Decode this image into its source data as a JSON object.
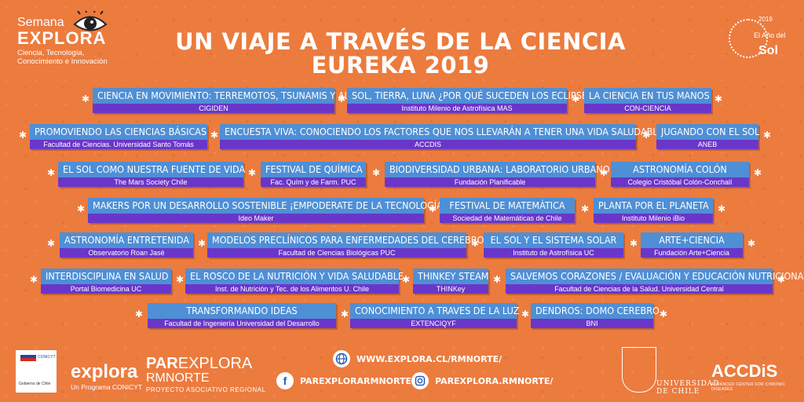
{
  "header": {
    "semana": "Semana",
    "explora": "EXPLORA",
    "tagline": [
      "Ciencia, Tecnología,",
      "Conocimiento e Innovación"
    ],
    "title_line1": "UN VIAJE A TRAVÉS DE LA CIENCIA",
    "title_line2": "EUREKA 2019",
    "sun_year": "2019",
    "sun_small": "El Año del",
    "sun_word": "Sol"
  },
  "activities": [
    {
      "title": "Ciencia en movimiento: Terremotos, tsunamis y aluviones",
      "org": "CIGIDEN"
    },
    {
      "title": "Sol, Tierra, Luna ¿Por qué suceden los eclipses?",
      "org": "Instituto Milenio de Astrofísica MAS"
    },
    {
      "title": "La ciencia en tus manos",
      "org": "CON-CIENCIA"
    },
    {
      "title": "Promoviendo las ciencias básicas",
      "org": "Facultad de Ciencias. Universidad Santo Tomás"
    },
    {
      "title": "Encuesta viva: Conociendo los factores que nos llevarán a tener una vida saludable",
      "org": "ACCDIS"
    },
    {
      "title": "Jugando con el sol",
      "org": "ANEB"
    },
    {
      "title": "El sol como nuestra fuente de vida",
      "org": "The Mars Society Chile"
    },
    {
      "title": "Festival de química",
      "org": "Fac. Quím y de Farm. PUC"
    },
    {
      "title": "Biodiversidad urbana: Laboratorio urbano",
      "org": "Fundación Planificable"
    },
    {
      "title": "Astronomía Colón",
      "org": "Colegio Cristóbal Colón-Conchalí"
    },
    {
      "title": "Makers por un desarrollo sostenible ¡Empoderate de la tecnología!",
      "org": "Ideo Maker"
    },
    {
      "title": "Festival de matemática",
      "org": "Sociedad de Matemáticas de Chile"
    },
    {
      "title": "Planta por el planeta",
      "org": "Instituto Milenio iBio"
    },
    {
      "title": "Astronomía entretenida",
      "org": "Observatorio Roan Jasé"
    },
    {
      "title": "Modelos preclínicos para enfermedades del cerebro",
      "org": "Facultad de Ciencias Biológicas PUC"
    },
    {
      "title": "El sol y el sistema solar",
      "org": "Instituto de Astrofísica UC"
    },
    {
      "title": "Arte+Ciencia",
      "org": "Fundación Arte+Ciencia"
    },
    {
      "title": "Interdisciplina en salud",
      "org": "Portal Biomedicina UC"
    },
    {
      "title": "El rosco de la nutrición y vida saludable",
      "org": "Inst. de Nutrición y Tec. de los Alimentos U. Chile"
    },
    {
      "title": "Thinkey steam",
      "org": "THINKey"
    },
    {
      "title": "Salvemos corazones / Evaluación y educación nutricional",
      "org": "Facultad de Ciencias de la Salud. Universidad Central"
    },
    {
      "title": "Transformando ideas",
      "org": "Facultad de Ingeniería Universidad del Desarrollo"
    },
    {
      "title": "Conocimiento a traves de la luz",
      "org": "EXTENCIQYF"
    },
    {
      "title": "Dendros: Domo cerebro",
      "org": "BNI"
    }
  ],
  "footer": {
    "gov_text": "Gobierno de Chile",
    "conicyt": "CONICYT",
    "explora_logo": "explora",
    "explora_sub": "Un Programa CONICYT",
    "parexplora_bold": "PAR",
    "parexplora_rest": "EXPLORA",
    "rmnorte": "RMNORTE",
    "proyecto": "PROYECTO ASOCIATIVO REGIONAL",
    "web": "WWW.EXPLORA.CL/RMNORTE/",
    "facebook": "PAREXPLORARMNORTE",
    "instagram": "PAREXPLORA.RMNORTE/",
    "uchile": "UNIVERSIDAD DE CHILE",
    "accdis": "ACCDiS",
    "accdis_sub": "ADVANCED CENTER FOR CHRONIC DISEASES"
  },
  "colors": {
    "background": "#ec7b3e",
    "title_bar": "#4e8fd6",
    "org_bar": "#6a36c9"
  },
  "icons": [
    "eye-icon",
    "sun-logo-icon",
    "globe-icon",
    "facebook-icon",
    "instagram-icon",
    "star-icon"
  ]
}
